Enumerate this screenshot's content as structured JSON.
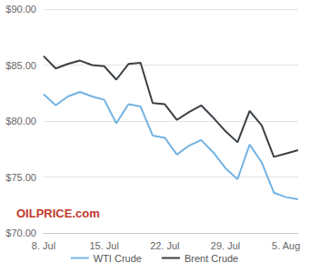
{
  "chart_data": {
    "type": "line",
    "categories": [
      "8. Jul",
      null,
      null,
      null,
      null,
      "15. Jul",
      null,
      null,
      null,
      null,
      "22. Jul",
      null,
      null,
      null,
      null,
      "29. Jul",
      null,
      null,
      null,
      null,
      "5. Aug",
      null
    ],
    "series": [
      {
        "name": "WTI Crude",
        "color": "#74b3e3",
        "values": [
          82.4,
          81.4,
          82.2,
          82.6,
          82.2,
          81.9,
          79.8,
          81.5,
          81.3,
          78.7,
          78.5,
          77.0,
          77.8,
          78.3,
          77.2,
          75.8,
          74.8,
          77.9,
          76.3,
          73.6,
          73.2,
          73.0
        ]
      },
      {
        "name": "Brent Crude",
        "color": "#3b4045",
        "values": [
          85.8,
          84.7,
          85.1,
          85.4,
          85.0,
          84.9,
          83.7,
          85.1,
          85.2,
          81.6,
          81.5,
          80.1,
          80.8,
          81.4,
          80.3,
          79.1,
          78.1,
          80.9,
          79.6,
          76.8,
          77.1,
          77.4
        ]
      }
    ],
    "ylim": [
      70,
      90
    ],
    "yticks": [
      {
        "value": 70,
        "label": "$70.00"
      },
      {
        "value": 75,
        "label": "$75.00"
      },
      {
        "value": 80,
        "label": "$80.00"
      },
      {
        "value": 85,
        "label": "$85.00"
      },
      {
        "value": 90,
        "label": "$90.00"
      }
    ],
    "grid": true,
    "legend": "bottom",
    "annotations": [
      "OILPRICE.com"
    ]
  }
}
